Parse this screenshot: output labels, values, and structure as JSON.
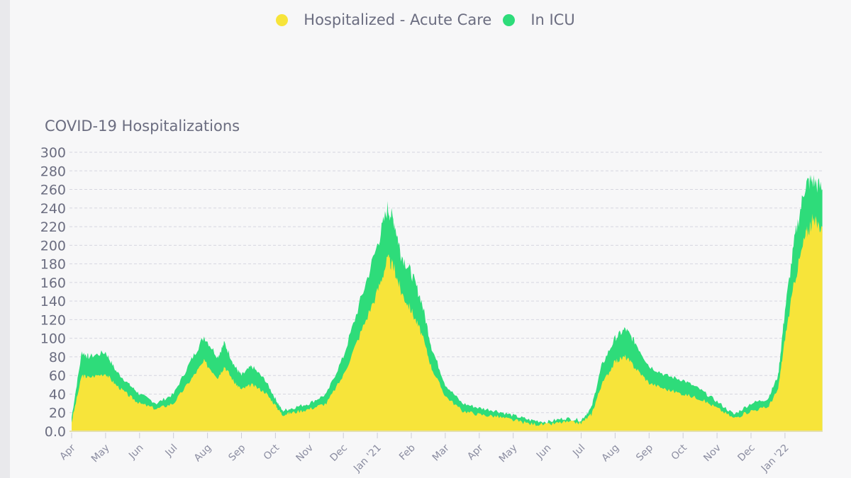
{
  "chart_data": {
    "type": "area",
    "title": "COVID-19 Hospitalizations",
    "legend": [
      {
        "name": "Hospitalized - Acute Care",
        "color": "#f7e43a"
      },
      {
        "name": "In ICU",
        "color": "#2edc7a"
      }
    ],
    "legend_position": "top-center",
    "xlabel": "",
    "ylabel": "",
    "ylim": [
      0,
      300
    ],
    "yticks": [
      "0.0",
      "20",
      "40",
      "60",
      "80",
      "100",
      "120",
      "140",
      "160",
      "180",
      "200",
      "220",
      "240",
      "260",
      "280",
      "300"
    ],
    "xticks": [
      "Apr",
      "May",
      "Jun",
      "Jul",
      "Aug",
      "Sep",
      "Oct",
      "Nov",
      "Dec",
      "Jan '21",
      "Feb",
      "Mar",
      "Apr",
      "May",
      "Jun",
      "Jul",
      "Aug",
      "Sep",
      "Oct",
      "Nov",
      "Dec",
      "Jan '22"
    ],
    "x_unit": "months since Apr 2020",
    "x": [
      0,
      0.3,
      0.5,
      1.0,
      1.3,
      1.7,
      2.0,
      2.5,
      3.0,
      3.5,
      3.9,
      4.3,
      4.5,
      4.8,
      5.0,
      5.3,
      5.7,
      6.0,
      6.2,
      6.5,
      7.0,
      7.5,
      8.0,
      8.5,
      9.0,
      9.3,
      9.5,
      9.7,
      10.0,
      10.3,
      10.6,
      11.0,
      11.5,
      12.0,
      12.5,
      13.0,
      13.5,
      14.0,
      14.5,
      15.0,
      15.3,
      15.6,
      16.0,
      16.3,
      16.6,
      17.0,
      17.5,
      18.0,
      18.5,
      19.0,
      19.5,
      20.0,
      20.5,
      20.8,
      21.0,
      21.3,
      21.6,
      21.8,
      22.1
    ],
    "series": [
      {
        "name": "Hospitalized - Acute Care",
        "values": [
          10,
          60,
          58,
          62,
          50,
          38,
          30,
          24,
          30,
          55,
          75,
          58,
          70,
          52,
          45,
          50,
          42,
          28,
          18,
          20,
          24,
          30,
          60,
          105,
          150,
          185,
          175,
          150,
          130,
          105,
          68,
          38,
          22,
          18,
          16,
          12,
          8,
          7,
          10,
          9,
          18,
          50,
          75,
          80,
          68,
          52,
          45,
          40,
          35,
          25,
          14,
          22,
          26,
          45,
          100,
          165,
          210,
          225,
          220
        ],
        "color": "#f7e43a"
      },
      {
        "name": "In ICU (stacked total)",
        "values": [
          15,
          85,
          80,
          85,
          65,
          50,
          40,
          30,
          40,
          75,
          102,
          80,
          95,
          70,
          60,
          70,
          55,
          35,
          22,
          25,
          30,
          40,
          80,
          140,
          200,
          240,
          225,
          190,
          170,
          140,
          90,
          50,
          30,
          25,
          22,
          17,
          12,
          10,
          14,
          12,
          25,
          70,
          100,
          110,
          95,
          70,
          60,
          55,
          45,
          32,
          18,
          30,
          35,
          60,
          130,
          210,
          265,
          270,
          260
        ],
        "color": "#2edc7a"
      }
    ]
  }
}
